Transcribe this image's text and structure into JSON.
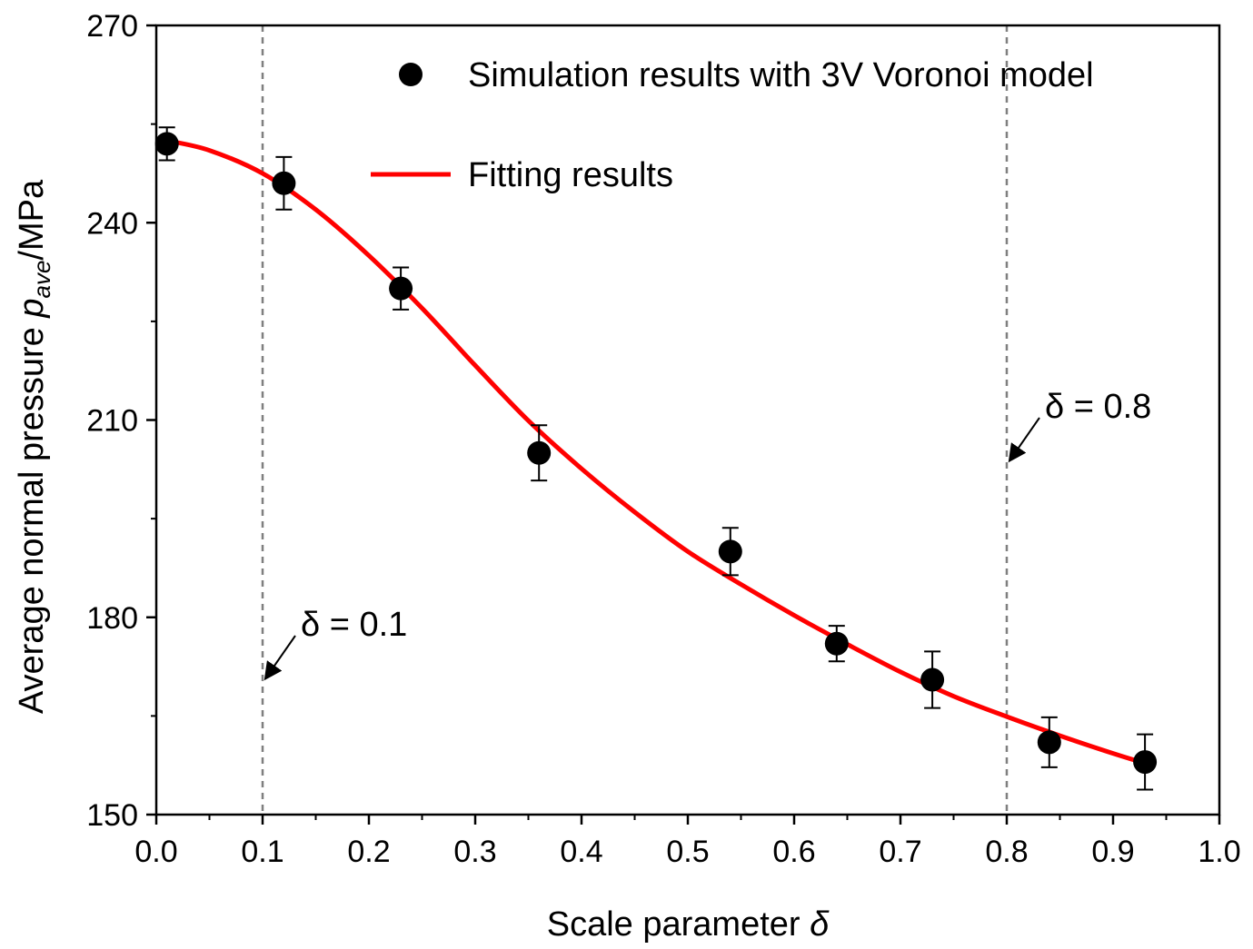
{
  "chart_data": {
    "type": "scatter",
    "xlabel": "Scale parameter δ",
    "xlabel_parts": {
      "text": "Scale parameter ",
      "symbol": "δ"
    },
    "ylabel_parts": {
      "pre": "Average normal pressure ",
      "p": "p",
      "sub": "ave",
      "post": "/MPa"
    },
    "xlim": [
      0.0,
      1.0
    ],
    "ylim": [
      150,
      270
    ],
    "x_ticks": [
      "0.0",
      "0.1",
      "0.2",
      "0.3",
      "0.4",
      "0.5",
      "0.6",
      "0.7",
      "0.8",
      "0.9",
      "1.0"
    ],
    "y_ticks": [
      "150",
      "180",
      "210",
      "240",
      "270"
    ],
    "legend_position": "top-right",
    "series": [
      {
        "name": "Simulation results with 3V Voronoi model",
        "kind": "scatter-errorbar",
        "color": "#000000",
        "points": [
          {
            "x": 0.01,
            "y": 252.0,
            "err": 2.5
          },
          {
            "x": 0.12,
            "y": 246.0,
            "err": 4.0
          },
          {
            "x": 0.23,
            "y": 230.0,
            "err": 3.2
          },
          {
            "x": 0.36,
            "y": 205.0,
            "err": 4.2
          },
          {
            "x": 0.54,
            "y": 190.0,
            "err": 3.6
          },
          {
            "x": 0.64,
            "y": 176.0,
            "err": 2.7
          },
          {
            "x": 0.73,
            "y": 170.5,
            "err": 4.3
          },
          {
            "x": 0.84,
            "y": 161.0,
            "err": 3.8
          },
          {
            "x": 0.93,
            "y": 158.0,
            "err": 4.2
          }
        ]
      },
      {
        "name": "Fitting results",
        "kind": "line",
        "color": "#ff0000",
        "x": [
          0.01,
          0.05,
          0.1,
          0.15,
          0.2,
          0.25,
          0.3,
          0.35,
          0.4,
          0.45,
          0.5,
          0.55,
          0.6,
          0.65,
          0.7,
          0.75,
          0.8,
          0.85,
          0.9,
          0.93
        ],
        "y": [
          252.5,
          251.0,
          247.5,
          242.0,
          235.0,
          227.0,
          218.3,
          209.9,
          202.6,
          196.0,
          190.0,
          185.0,
          180.3,
          175.9,
          171.7,
          168.0,
          164.9,
          162.0,
          159.3,
          157.8
        ]
      }
    ],
    "reference_lines": [
      {
        "x": 0.1,
        "label": "δ = 0.1"
      },
      {
        "x": 0.8,
        "label": "δ = 0.8"
      }
    ]
  }
}
